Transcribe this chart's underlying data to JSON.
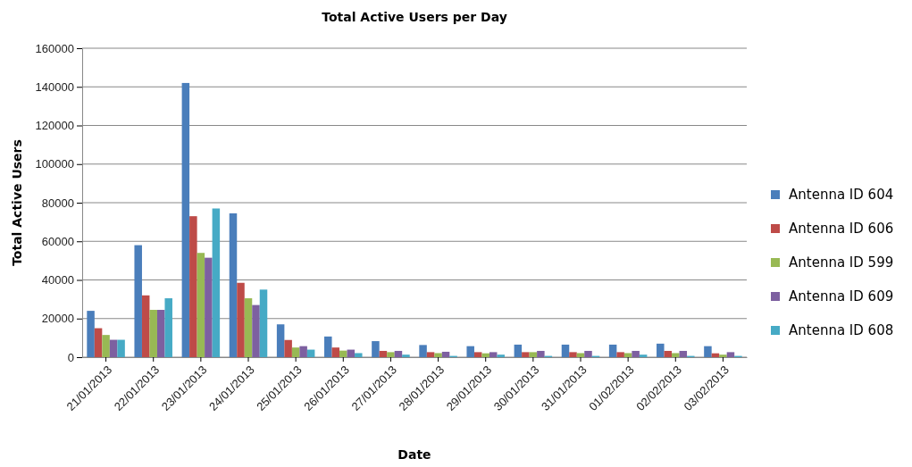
{
  "chart_data": {
    "type": "bar",
    "title": "Total Active Users per Day",
    "xlabel": "Date",
    "ylabel": "Total Active Users",
    "categories": [
      "21/01/2013",
      "22/01/2013",
      "23/01/2013",
      "24/01/2013",
      "25/01/2013",
      "26/01/2013",
      "27/01/2013",
      "28/01/2013",
      "29/01/2013",
      "30/01/2013",
      "31/01/2013",
      "01/02/2013",
      "02/02/2013",
      "03/02/2013"
    ],
    "ylim": [
      0,
      160000
    ],
    "yticks": [
      0,
      20000,
      40000,
      60000,
      80000,
      100000,
      120000,
      140000,
      160000
    ],
    "grid": "y",
    "legend": "right",
    "series": [
      {
        "name": "Antenna ID 604",
        "color": "#4a7ebb",
        "values": [
          24000,
          58000,
          142000,
          74500,
          17000,
          10700,
          8300,
          6300,
          5700,
          6500,
          6500,
          6500,
          7000,
          5700
        ]
      },
      {
        "name": "Antenna ID 606",
        "color": "#be4b48",
        "values": [
          15000,
          32000,
          73000,
          38500,
          8900,
          5000,
          3250,
          2600,
          2600,
          2600,
          2600,
          2600,
          3250,
          2000
        ]
      },
      {
        "name": "Antenna ID 599",
        "color": "#98b954",
        "values": [
          11500,
          24500,
          54000,
          30500,
          5000,
          3400,
          2600,
          2100,
          2000,
          2600,
          2100,
          2100,
          2100,
          1300
        ]
      },
      {
        "name": "Antenna ID 609",
        "color": "#7d60a0",
        "values": [
          9000,
          24500,
          51500,
          27000,
          5700,
          3900,
          3250,
          2800,
          2600,
          3250,
          3250,
          3250,
          3250,
          2600
        ]
      },
      {
        "name": "Antenna ID 608",
        "color": "#46aac5",
        "values": [
          9000,
          30500,
          77000,
          35000,
          3900,
          2100,
          1300,
          650,
          1300,
          650,
          650,
          1300,
          650,
          650
        ]
      }
    ]
  }
}
